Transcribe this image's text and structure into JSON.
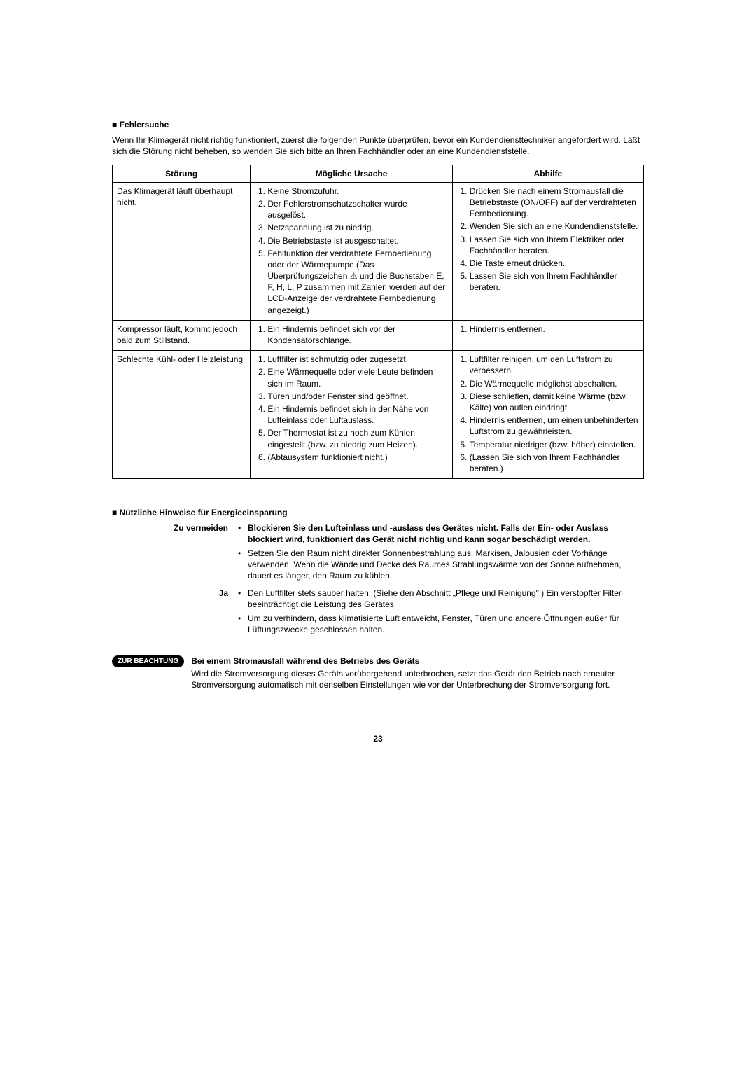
{
  "troubleshooting": {
    "title": "Fehlersuche",
    "intro": "Wenn Ihr Klimagerät nicht richtig funktioniert, zuerst die folgenden Punkte überprüfen, bevor ein Kundendiensttechniker angefordert wird. Läßt sich die Störung nicht beheben, so wenden Sie sich bitte an Ihren Fachhändler oder an eine Kundendienststelle.",
    "headers": {
      "problem": "Störung",
      "cause": "Mögliche Ursache",
      "remedy": "Abhilfe"
    },
    "rows": [
      {
        "problem": "Das Klimagerät läuft überhaupt nicht.",
        "causes": [
          "Keine Stromzufuhr.",
          "Der Fehlerstromschutzschalter wurde ausgelöst.",
          "Netzspannung ist zu niedrig.",
          "Die Betriebstaste ist ausgeschaltet.",
          "Fehlfunktion der verdrahtete Fernbedienung oder der Wärmepumpe (Das Überprüfungszeichen ⚠ und die Buchstaben E, F, H, L, P zusammen mit Zahlen werden auf der LCD-Anzeige der verdrahtete Fernbedienung angezeigt.)"
        ],
        "remedies": [
          "Drücken Sie nach einem Stromausfall die Betriebstaste (ON/OFF) auf der verdrahteten Fernbedienung.",
          "Wenden Sie sich an eine Kundendienststelle.",
          "Lassen Sie sich von Ihrem Elektriker oder Fachhändler beraten.",
          "Die Taste erneut drücken.",
          "Lassen Sie sich von Ihrem Fachhändler beraten."
        ]
      },
      {
        "problem": "Kompressor läuft, kommt jedoch bald zum Stillstand.",
        "causes": [
          "Ein Hindernis befindet sich vor der Kondensatorschlange."
        ],
        "remedies": [
          "Hindernis entfernen."
        ]
      },
      {
        "problem": "Schlechte Kühl- oder Heizleistung",
        "causes": [
          "Luftfilter ist schmutzig oder zugesetzt.",
          "Eine Wärmequelle oder viele Leute befinden sich im Raum.",
          "Türen und/oder Fenster sind geöffnet.",
          "Ein Hindernis befindet sich in der Nähe von Lufteinlass oder Luftauslass.",
          "Der Thermostat ist zu hoch zum Kühlen eingestellt (bzw. zu niedrig zum Heizen).",
          "(Abtausystem funktioniert nicht.)"
        ],
        "remedies": [
          "Luftfilter reinigen, um den Luftstrom zu verbessern.",
          "Die Wärmequelle möglichst abschalten.",
          "Diese schlieflen, damit keine Wärme (bzw. Kälte) von auflen eindringt.",
          "Hindernis entfernen, um einen unbehinderten Luftstrom zu gewährleisten.",
          "Temperatur niedriger (bzw. höher) einstellen.",
          "(Lassen Sie sich von Ihrem Fachhändler beraten.)"
        ]
      }
    ]
  },
  "hints": {
    "title": "Nützliche Hinweise für Energieeinsparung",
    "avoid_label": "Zu vermeiden",
    "avoid_items": [
      {
        "bold": true,
        "text": "Blockieren Sie den Lufteinlass und -auslass des Gerätes nicht. Falls der Ein- oder Auslass blockiert wird, funktioniert das Gerät nicht richtig und kann sogar beschädigt werden."
      },
      {
        "bold": false,
        "text": "Setzen Sie den Raum nicht direkter Sonnenbestrahlung aus. Markisen, Jalousien oder Vorhänge verwenden. Wenn die Wände und Decke des Raumes Strahlungswärme von der Sonne aufnehmen, dauert es länger, den Raum zu kühlen."
      }
    ],
    "yes_label": "Ja",
    "yes_items": [
      {
        "text": "Den Luftfilter stets sauber halten. (Siehe den Abschnitt „Pflege und Reinigung\".) Ein verstopfter Filter beeinträchtigt die Leistung des Gerätes."
      },
      {
        "text": "Um zu verhindern, dass klimatisierte Luft entweicht, Fenster, Türen und andere Öffnungen außer für Lüftungszwecke geschlossen halten."
      }
    ]
  },
  "note": {
    "badge": "ZUR BEACHTUNG",
    "heading": "Bei einem Stromausfall während des Betriebs des Geräts",
    "body": "Wird die Stromversorgung dieses Geräts vorübergehend unterbrochen, setzt das Gerät den Betrieb nach erneuter Stromversorgung automatisch mit denselben Einstellungen wie vor der Unterbrechung der Stromversorgung fort."
  },
  "page_number": "23"
}
